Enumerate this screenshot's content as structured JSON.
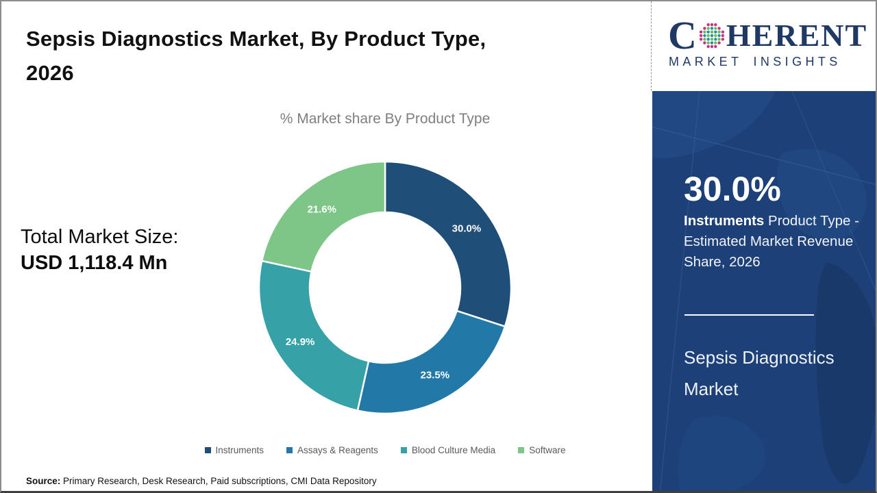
{
  "title": {
    "line1": "Sepsis Diagnostics Market, By Product Type,",
    "line2": "2026"
  },
  "chart_data": {
    "type": "pie",
    "subtype": "donut",
    "title": "% Market share By Product Type",
    "categories": [
      "Instruments",
      "Assays & Reagents",
      "Blood Culture Media",
      "Software"
    ],
    "values": [
      30.0,
      23.5,
      24.9,
      21.6
    ],
    "colors": [
      "#1F4E79",
      "#2278A7",
      "#36A1A6",
      "#7EC687"
    ],
    "data_label_format": "percent_one_decimal",
    "data_labels": [
      "30.0%",
      "23.5%",
      "24.9%",
      "21.6%"
    ],
    "start_angle_deg": 0,
    "direction": "clockwise",
    "inner_radius_ratio": 0.6,
    "legend_position": "bottom",
    "label_color": "#ffffff"
  },
  "total_market": {
    "label": "Total Market Size:",
    "value": "USD 1,118.4 Mn"
  },
  "sidebar": {
    "bg_color": "#1C4077",
    "highlight_value": "30.0%",
    "highlight_bold": "Instruments",
    "highlight_rest": " Product Type - Estimated Market Revenue Share, 2026",
    "market_name": "Sepsis Diagnostics Market"
  },
  "logo": {
    "letter_c": "C",
    "letters_rest": "HERENT",
    "subtitle": "MARKET INSIGHTS",
    "text_color": "#1f3864",
    "globe_colors": {
      "edge": "#c9327e",
      "teal": "#21939f",
      "green": "#6cba5d"
    }
  },
  "footer": {
    "source_label": "Source:",
    "source_text": " Primary Research, Desk Research, Paid subscriptions, CMI Data Repository"
  }
}
